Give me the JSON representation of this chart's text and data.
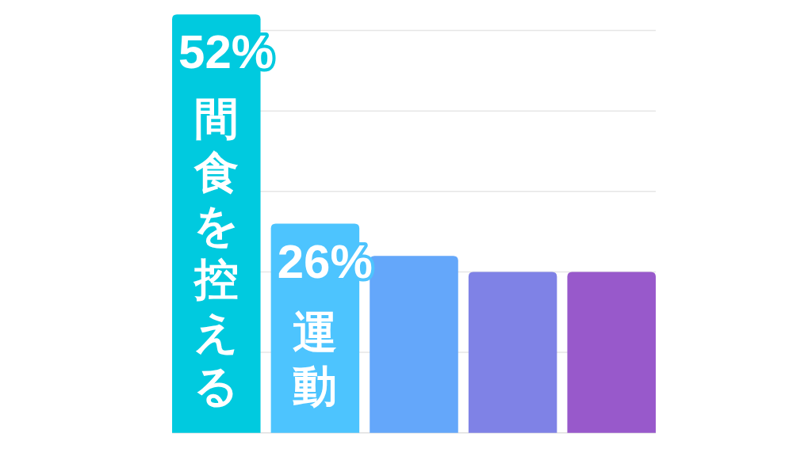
{
  "chart_data": {
    "type": "bar",
    "categories": [
      "間食を控える",
      "運動",
      null,
      null,
      null
    ],
    "values": [
      52,
      26,
      22,
      20,
      20
    ],
    "colors": [
      "#00cadf",
      "#4dc4fe",
      "#64a7fa",
      "#7f82e6",
      "#9859cb"
    ],
    "value_labels": [
      "52%",
      "26%",
      null,
      null,
      null
    ],
    "ylim": [
      0,
      52
    ],
    "yticks": [
      {
        "value": 10,
        "label": null
      },
      {
        "value": 20,
        "label": null
      },
      {
        "value": 30,
        "label": null
      },
      {
        "value": 40,
        "label": null
      },
      {
        "value": 50,
        "label": null
      }
    ],
    "grid": "y"
  }
}
